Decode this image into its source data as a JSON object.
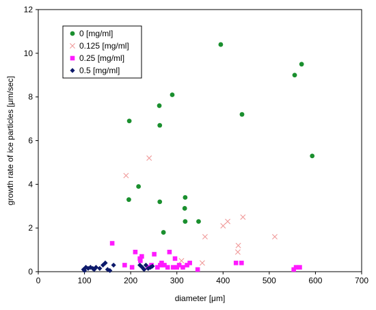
{
  "chart_data": {
    "type": "scatter",
    "xlabel": "diameter [μm]",
    "ylabel": "growth rate of ice particles  [μm/sec]",
    "xlim": [
      0,
      700
    ],
    "ylim": [
      0,
      12
    ],
    "x_ticks": [
      "0",
      "100",
      "200",
      "300",
      "400",
      "500",
      "600",
      "700"
    ],
    "y_ticks": [
      "0",
      "2",
      "4",
      "6",
      "8",
      "10",
      "12"
    ],
    "grid": false,
    "legend_position": "top-left",
    "series": [
      {
        "name": "0 [mg/ml]",
        "marker": "circle",
        "color": "#1a8f2e",
        "points": [
          [
            197,
            6.9
          ],
          [
            196,
            3.3
          ],
          [
            217,
            3.9
          ],
          [
            262,
            7.6
          ],
          [
            263,
            6.7
          ],
          [
            263,
            3.2
          ],
          [
            271,
            1.8
          ],
          [
            290,
            8.1
          ],
          [
            318,
            3.4
          ],
          [
            317,
            2.9
          ],
          [
            318,
            2.3
          ],
          [
            347,
            2.3
          ],
          [
            395,
            10.4
          ],
          [
            441,
            7.2
          ],
          [
            555,
            9.0
          ],
          [
            570,
            9.5
          ],
          [
            593,
            5.3
          ]
        ]
      },
      {
        "name": "0.125 [mg/ml]",
        "marker": "x",
        "color": "#f09a9a",
        "points": [
          [
            190,
            4.4
          ],
          [
            240,
            5.2
          ],
          [
            310,
            0.5
          ],
          [
            355,
            0.4
          ],
          [
            361,
            1.6
          ],
          [
            400,
            2.1
          ],
          [
            410,
            2.3
          ],
          [
            433,
            1.2
          ],
          [
            432,
            0.9
          ],
          [
            443,
            2.5
          ],
          [
            512,
            1.6
          ]
        ]
      },
      {
        "name": "0.25 [mg/ml]",
        "marker": "square",
        "color": "#ff1aff",
        "points": [
          [
            160,
            1.3
          ],
          [
            187,
            0.3
          ],
          [
            203,
            0.2
          ],
          [
            210,
            0.9
          ],
          [
            220,
            0.6
          ],
          [
            221,
            0.5
          ],
          [
            224,
            0.7
          ],
          [
            237,
            0.2
          ],
          [
            245,
            0.3
          ],
          [
            251,
            0.8
          ],
          [
            258,
            0.2
          ],
          [
            264,
            0.3
          ],
          [
            267,
            0.4
          ],
          [
            273,
            0.3
          ],
          [
            280,
            0.2
          ],
          [
            284,
            0.9
          ],
          [
            292,
            0.2
          ],
          [
            296,
            0.6
          ],
          [
            300,
            0.2
          ],
          [
            305,
            0.3
          ],
          [
            313,
            0.2
          ],
          [
            322,
            0.3
          ],
          [
            328,
            0.4
          ],
          [
            345,
            0.1
          ],
          [
            428,
            0.4
          ],
          [
            440,
            0.4
          ],
          [
            553,
            0.1
          ],
          [
            558,
            0.2
          ],
          [
            566,
            0.2
          ]
        ]
      },
      {
        "name": "0.5 [mg/ml]",
        "marker": "diamond",
        "color": "#0d1a6b",
        "points": [
          [
            98,
            0.1
          ],
          [
            100,
            0.05
          ],
          [
            103,
            0.2
          ],
          [
            108,
            0.15
          ],
          [
            113,
            0.2
          ],
          [
            118,
            0.15
          ],
          [
            121,
            0.1
          ],
          [
            125,
            0.2
          ],
          [
            133,
            0.15
          ],
          [
            140,
            0.3
          ],
          [
            145,
            0.4
          ],
          [
            150,
            0.1
          ],
          [
            155,
            0.05
          ],
          [
            163,
            0.3
          ],
          [
            220,
            0.3
          ],
          [
            225,
            0.2
          ],
          [
            229,
            0.1
          ],
          [
            233,
            0.3
          ],
          [
            238,
            0.15
          ],
          [
            243,
            0.2
          ],
          [
            247,
            0.25
          ]
        ]
      }
    ]
  }
}
